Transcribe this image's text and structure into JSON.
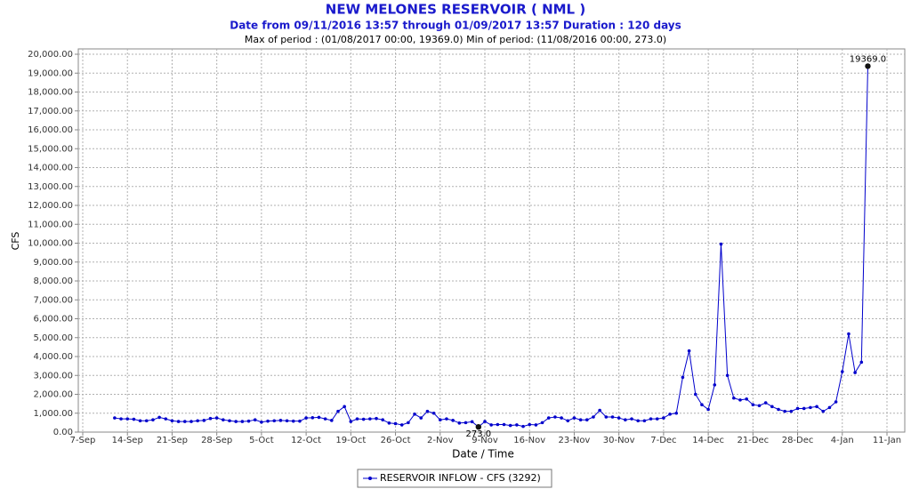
{
  "chart_data": {
    "type": "line",
    "title": "NEW MELONES RESERVOIR ( NML )",
    "subtitle": "Date from 09/11/2016 13:57 through 01/09/2017 13:57 Duration : 120 days",
    "period_note": "Max of period : (01/08/2017 00:00, 19369.0)  Min of period: (11/08/2016 00:00,  273.0)",
    "xlabel": "Date / Time",
    "ylabel": "CFS",
    "x": [
      "2016-09-12",
      "2016-09-13",
      "2016-09-14",
      "2016-09-15",
      "2016-09-16",
      "2016-09-17",
      "2016-09-18",
      "2016-09-19",
      "2016-09-20",
      "2016-09-21",
      "2016-09-22",
      "2016-09-23",
      "2016-09-24",
      "2016-09-25",
      "2016-09-26",
      "2016-09-27",
      "2016-09-28",
      "2016-09-29",
      "2016-09-30",
      "2016-10-01",
      "2016-10-02",
      "2016-10-03",
      "2016-10-04",
      "2016-10-05",
      "2016-10-06",
      "2016-10-07",
      "2016-10-08",
      "2016-10-09",
      "2016-10-10",
      "2016-10-11",
      "2016-10-12",
      "2016-10-13",
      "2016-10-14",
      "2016-10-15",
      "2016-10-16",
      "2016-10-17",
      "2016-10-18",
      "2016-10-19",
      "2016-10-20",
      "2016-10-21",
      "2016-10-22",
      "2016-10-23",
      "2016-10-24",
      "2016-10-25",
      "2016-10-26",
      "2016-10-27",
      "2016-10-28",
      "2016-10-29",
      "2016-10-30",
      "2016-10-31",
      "2016-11-01",
      "2016-11-02",
      "2016-11-03",
      "2016-11-04",
      "2016-11-05",
      "2016-11-06",
      "2016-11-07",
      "2016-11-08",
      "2016-11-09",
      "2016-11-10",
      "2016-11-11",
      "2016-11-12",
      "2016-11-13",
      "2016-11-14",
      "2016-11-15",
      "2016-11-16",
      "2016-11-17",
      "2016-11-18",
      "2016-11-19",
      "2016-11-20",
      "2016-11-21",
      "2016-11-22",
      "2016-11-23",
      "2016-11-24",
      "2016-11-25",
      "2016-11-26",
      "2016-11-27",
      "2016-11-28",
      "2016-11-29",
      "2016-11-30",
      "2016-12-01",
      "2016-12-02",
      "2016-12-03",
      "2016-12-04",
      "2016-12-05",
      "2016-12-06",
      "2016-12-07",
      "2016-12-08",
      "2016-12-09",
      "2016-12-10",
      "2016-12-11",
      "2016-12-12",
      "2016-12-13",
      "2016-12-14",
      "2016-12-15",
      "2016-12-16",
      "2016-12-17",
      "2016-12-18",
      "2016-12-19",
      "2016-12-20",
      "2016-12-21",
      "2016-12-22",
      "2016-12-23",
      "2016-12-24",
      "2016-12-25",
      "2016-12-26",
      "2016-12-27",
      "2016-12-28",
      "2016-12-29",
      "2016-12-30",
      "2016-12-31",
      "2017-01-01",
      "2017-01-02",
      "2017-01-03",
      "2017-01-04",
      "2017-01-05",
      "2017-01-06",
      "2017-01-07",
      "2017-01-08"
    ],
    "series": [
      {
        "name": "RESERVOIR INFLOW - CFS (3292)",
        "color": "#0000cc",
        "values": [
          750,
          700,
          700,
          680,
          600,
          600,
          650,
          780,
          700,
          600,
          560,
          560,
          560,
          600,
          620,
          720,
          750,
          650,
          600,
          560,
          560,
          580,
          650,
          530,
          580,
          600,
          620,
          600,
          580,
          580,
          750,
          760,
          780,
          700,
          620,
          1100,
          1350,
          560,
          700,
          680,
          700,
          720,
          650,
          480,
          450,
          380,
          500,
          950,
          750,
          1100,
          1000,
          650,
          700,
          620,
          480,
          500,
          550,
          273,
          560,
          380,
          400,
          400,
          350,
          380,
          300,
          400,
          380,
          500,
          750,
          800,
          750,
          600,
          750,
          650,
          650,
          800,
          1150,
          800,
          800,
          750,
          650,
          700,
          600,
          600,
          700,
          700,
          750,
          950,
          1000,
          2900,
          4300,
          2000,
          1450,
          1200,
          2500,
          9950,
          3000,
          1800,
          1700,
          1750,
          1450,
          1400,
          1550,
          1350,
          1200,
          1100,
          1100,
          1250,
          1250,
          1300,
          1350,
          1100,
          1300,
          1600,
          3200,
          5200,
          3150,
          3700,
          19369
        ]
      }
    ],
    "annotations": [
      {
        "text": "19369.0",
        "x": "2017-01-08",
        "y": 19369
      },
      {
        "text": "273.0",
        "x": "2016-11-08",
        "y": 273
      }
    ],
    "xlim": [
      "2016-09-07",
      "2017-01-11"
    ],
    "xticks": [
      {
        "value": "2016-09-07",
        "label": "7-Sep"
      },
      {
        "value": "2016-09-14",
        "label": "14-Sep"
      },
      {
        "value": "2016-09-21",
        "label": "21-Sep"
      },
      {
        "value": "2016-09-28",
        "label": "28-Sep"
      },
      {
        "value": "2016-10-05",
        "label": "5-Oct"
      },
      {
        "value": "2016-10-12",
        "label": "12-Oct"
      },
      {
        "value": "2016-10-19",
        "label": "19-Oct"
      },
      {
        "value": "2016-10-26",
        "label": "26-Oct"
      },
      {
        "value": "2016-11-02",
        "label": "2-Nov"
      },
      {
        "value": "2016-11-09",
        "label": "9-Nov"
      },
      {
        "value": "2016-11-16",
        "label": "16-Nov"
      },
      {
        "value": "2016-11-23",
        "label": "23-Nov"
      },
      {
        "value": "2016-11-30",
        "label": "30-Nov"
      },
      {
        "value": "2016-12-07",
        "label": "7-Dec"
      },
      {
        "value": "2016-12-14",
        "label": "14-Dec"
      },
      {
        "value": "2016-12-21",
        "label": "21-Dec"
      },
      {
        "value": "2016-12-28",
        "label": "28-Dec"
      },
      {
        "value": "2017-01-04",
        "label": "4-Jan"
      },
      {
        "value": "2017-01-11",
        "label": "11-Jan"
      }
    ],
    "ylim": [
      0,
      20000
    ],
    "yticks": [
      {
        "value": 0,
        "label": "0.00"
      },
      {
        "value": 1000,
        "label": "1,000.00"
      },
      {
        "value": 2000,
        "label": "2,000.00"
      },
      {
        "value": 3000,
        "label": "3,000.00"
      },
      {
        "value": 4000,
        "label": "4,000.00"
      },
      {
        "value": 5000,
        "label": "5,000.00"
      },
      {
        "value": 6000,
        "label": "6,000.00"
      },
      {
        "value": 7000,
        "label": "7,000.00"
      },
      {
        "value": 8000,
        "label": "8,000.00"
      },
      {
        "value": 9000,
        "label": "9,000.00"
      },
      {
        "value": 10000,
        "label": "10,000.00"
      },
      {
        "value": 11000,
        "label": "11,000.00"
      },
      {
        "value": 12000,
        "label": "12,000.00"
      },
      {
        "value": 13000,
        "label": "13,000.00"
      },
      {
        "value": 14000,
        "label": "14,000.00"
      },
      {
        "value": 15000,
        "label": "15,000.00"
      },
      {
        "value": 16000,
        "label": "16,000.00"
      },
      {
        "value": 17000,
        "label": "17,000.00"
      },
      {
        "value": 18000,
        "label": "18,000.00"
      },
      {
        "value": 19000,
        "label": "19,000.00"
      },
      {
        "value": 20000,
        "label": "20,000.00"
      }
    ],
    "grid": true
  }
}
